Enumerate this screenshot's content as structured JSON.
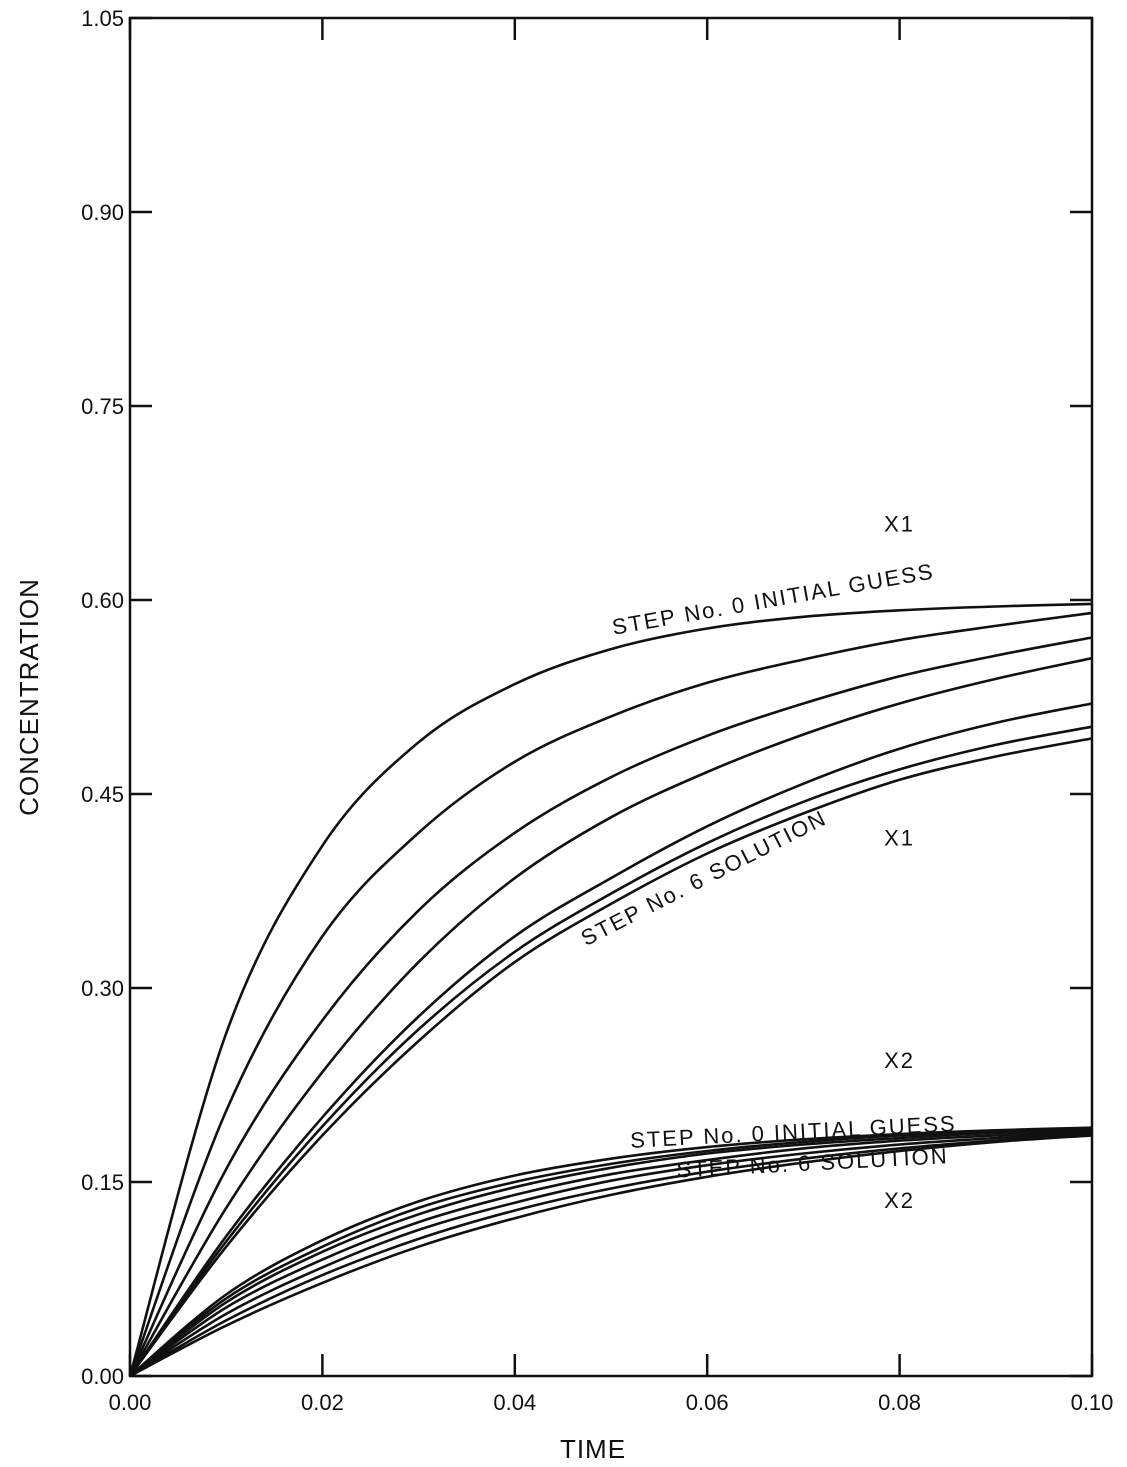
{
  "chart_data": {
    "type": "line",
    "title": "",
    "xlabel": "TIME",
    "ylabel": "CONCENTRATION",
    "xlim": [
      0.0,
      0.1
    ],
    "ylim": [
      0.0,
      1.05
    ],
    "xticks": [
      0.0,
      0.02,
      0.04,
      0.06,
      0.08,
      0.1
    ],
    "xtick_labels": [
      "0.00",
      "0.02",
      "0.04",
      "0.06",
      "0.08",
      "0.10"
    ],
    "yticks": [
      0.0,
      0.15,
      0.3,
      0.45,
      0.6,
      0.75,
      0.9,
      1.05
    ],
    "ytick_labels": [
      "0.00",
      "0.15",
      "0.30",
      "0.45",
      "0.60",
      "0.75",
      "0.90",
      "1.05"
    ],
    "grid": false,
    "x": [
      0.0,
      0.01,
      0.02,
      0.03,
      0.04,
      0.05,
      0.06,
      0.07,
      0.08,
      0.09,
      0.1
    ],
    "series": [
      {
        "values": [
          0.0,
          0.265,
          0.41,
          0.49,
          0.535,
          0.562,
          0.578,
          0.587,
          0.592,
          0.595,
          0.597
        ]
      },
      {
        "values": [
          0.0,
          0.205,
          0.34,
          0.42,
          0.475,
          0.51,
          0.536,
          0.554,
          0.569,
          0.58,
          0.59
        ]
      },
      {
        "values": [
          0.0,
          0.16,
          0.275,
          0.36,
          0.42,
          0.463,
          0.495,
          0.52,
          0.541,
          0.557,
          0.571
        ]
      },
      {
        "values": [
          0.0,
          0.13,
          0.235,
          0.32,
          0.385,
          0.432,
          0.467,
          0.496,
          0.52,
          0.539,
          0.555
        ]
      },
      {
        "values": [
          0.0,
          0.108,
          0.2,
          0.278,
          0.34,
          0.385,
          0.425,
          0.458,
          0.485,
          0.505,
          0.52
        ]
      },
      {
        "values": [
          0.0,
          0.104,
          0.193,
          0.268,
          0.328,
          0.373,
          0.412,
          0.444,
          0.469,
          0.488,
          0.502
        ]
      },
      {
        "values": [
          0.0,
          0.1,
          0.186,
          0.259,
          0.32,
          0.365,
          0.404,
          0.435,
          0.461,
          0.479,
          0.493
        ]
      },
      {
        "values": [
          0.0,
          0.063,
          0.105,
          0.135,
          0.155,
          0.168,
          0.177,
          0.183,
          0.187,
          0.19,
          0.192
        ]
      },
      {
        "values": [
          0.0,
          0.06,
          0.1,
          0.13,
          0.15,
          0.164,
          0.174,
          0.181,
          0.186,
          0.189,
          0.191
        ]
      },
      {
        "values": [
          0.0,
          0.057,
          0.096,
          0.125,
          0.146,
          0.161,
          0.172,
          0.179,
          0.184,
          0.188,
          0.19
        ]
      },
      {
        "values": [
          0.0,
          0.053,
          0.09,
          0.119,
          0.14,
          0.156,
          0.167,
          0.176,
          0.182,
          0.186,
          0.189
        ]
      },
      {
        "values": [
          0.0,
          0.048,
          0.084,
          0.113,
          0.134,
          0.151,
          0.163,
          0.172,
          0.179,
          0.184,
          0.188
        ]
      },
      {
        "values": [
          0.0,
          0.043,
          0.078,
          0.106,
          0.128,
          0.145,
          0.158,
          0.168,
          0.176,
          0.182,
          0.187
        ]
      },
      {
        "values": [
          0.0,
          0.039,
          0.072,
          0.1,
          0.122,
          0.14,
          0.154,
          0.165,
          0.174,
          0.181,
          0.186
        ]
      }
    ],
    "annotations": [
      {
        "text": "X1",
        "x": 0.08,
        "y": 0.653
      },
      {
        "text": "STEP No. 0  INITIAL  GUESS",
        "x": 0.067,
        "y": 0.595,
        "note": "curved along top X1 curve"
      },
      {
        "text": "STEP No. 6  SOLUTION",
        "x": 0.06,
        "y": 0.38,
        "note": "curved along bottom X1 curve"
      },
      {
        "text": "X1",
        "x": 0.08,
        "y": 0.41
      },
      {
        "text": "X2",
        "x": 0.08,
        "y": 0.238
      },
      {
        "text": "STEP  No. 0  INITIAL  GUESS",
        "x": 0.069,
        "y": 0.183
      },
      {
        "text": "STEP  No. 6  SOLUTION",
        "x": 0.071,
        "y": 0.159
      },
      {
        "text": "X2",
        "x": 0.08,
        "y": 0.13
      }
    ]
  }
}
